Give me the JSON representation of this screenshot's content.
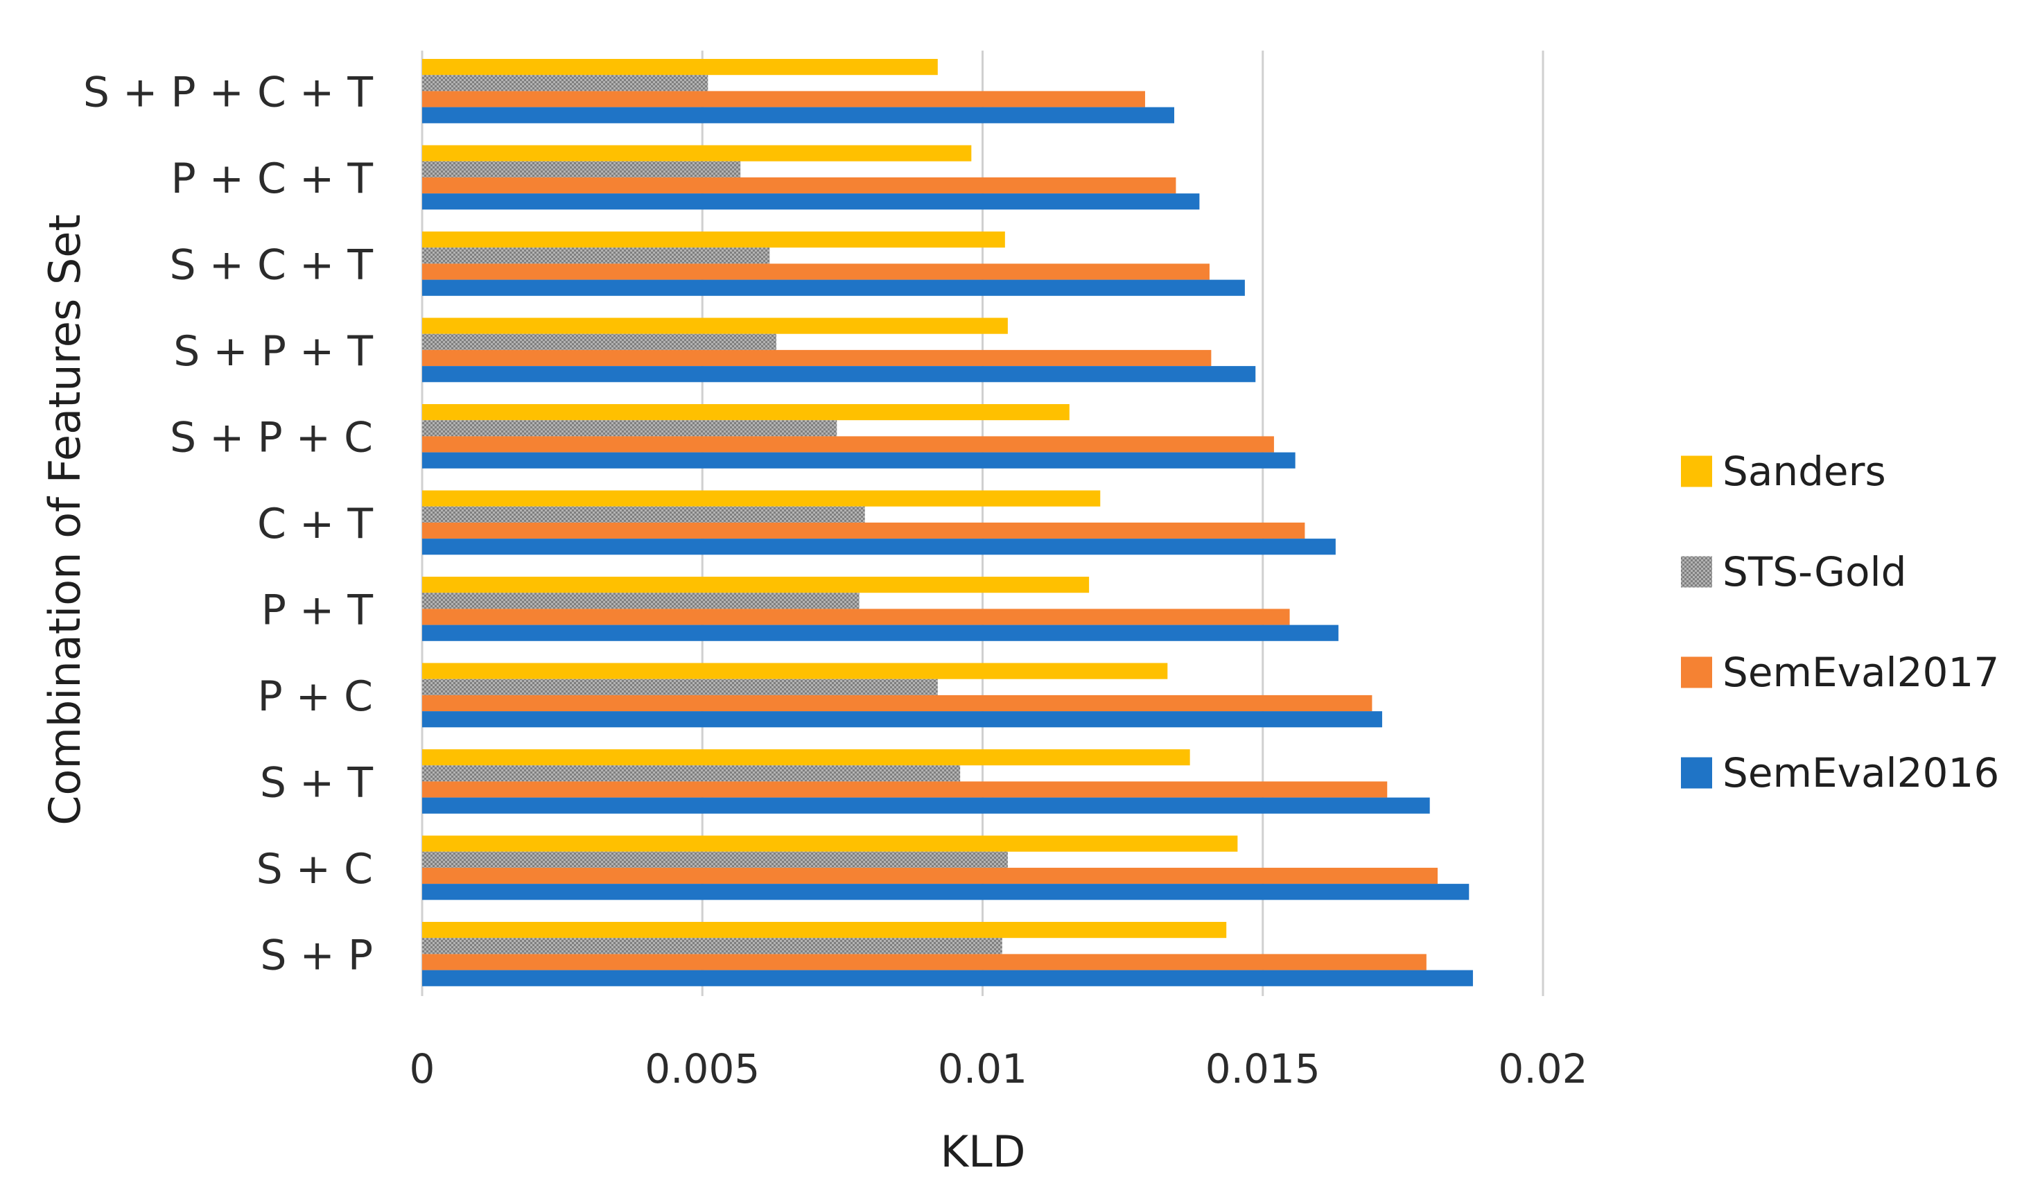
{
  "chart_data": {
    "type": "bar",
    "orientation": "horizontal",
    "categories": [
      "S + P + C + T",
      "P + C + T",
      "S + C + T",
      "S + P + T",
      "S + P + C",
      "C + T",
      "P + T",
      "P + C",
      "S + T",
      "S + C",
      "S + P"
    ],
    "series": [
      {
        "name": "Sanders",
        "color": "#FFC000",
        "pattern": "solid",
        "values": [
          0.0092,
          0.0098,
          0.0104,
          0.01045,
          0.01155,
          0.0121,
          0.0119,
          0.0133,
          0.0137,
          0.01455,
          0.01435
        ]
      },
      {
        "name": "STS-Gold",
        "color": "#A5A5A5",
        "pattern": "dotted",
        "values": [
          0.0051,
          0.00568,
          0.0062,
          0.00632,
          0.0074,
          0.0079,
          0.0078,
          0.0092,
          0.0096,
          0.01045,
          0.01035
        ]
      },
      {
        "name": "SemEval2017",
        "color": "#F58233",
        "pattern": "solid",
        "values": [
          0.0129,
          0.01345,
          0.01405,
          0.01408,
          0.0152,
          0.01575,
          0.01548,
          0.01695,
          0.01722,
          0.01812,
          0.01792
        ]
      },
      {
        "name": "SemEval2016",
        "color": "#1F74C6",
        "pattern": "solid",
        "values": [
          0.01342,
          0.01387,
          0.01468,
          0.01487,
          0.01558,
          0.0163,
          0.01635,
          0.01713,
          0.01798,
          0.01868,
          0.01875
        ]
      }
    ],
    "xlabel": "KLD",
    "ylabel": "Combination of Features Set",
    "xlim": [
      0,
      0.02
    ],
    "xticks": [
      "0",
      "0.005",
      "0.01",
      "0.015",
      "0.02"
    ],
    "xtick_values": [
      0,
      0.005,
      0.01,
      0.015,
      0.02
    ],
    "grid": "vertical",
    "legend_position": "right",
    "legend_order": [
      "Sanders",
      "STS-Gold",
      "SemEval2017",
      "SemEval2016"
    ]
  }
}
